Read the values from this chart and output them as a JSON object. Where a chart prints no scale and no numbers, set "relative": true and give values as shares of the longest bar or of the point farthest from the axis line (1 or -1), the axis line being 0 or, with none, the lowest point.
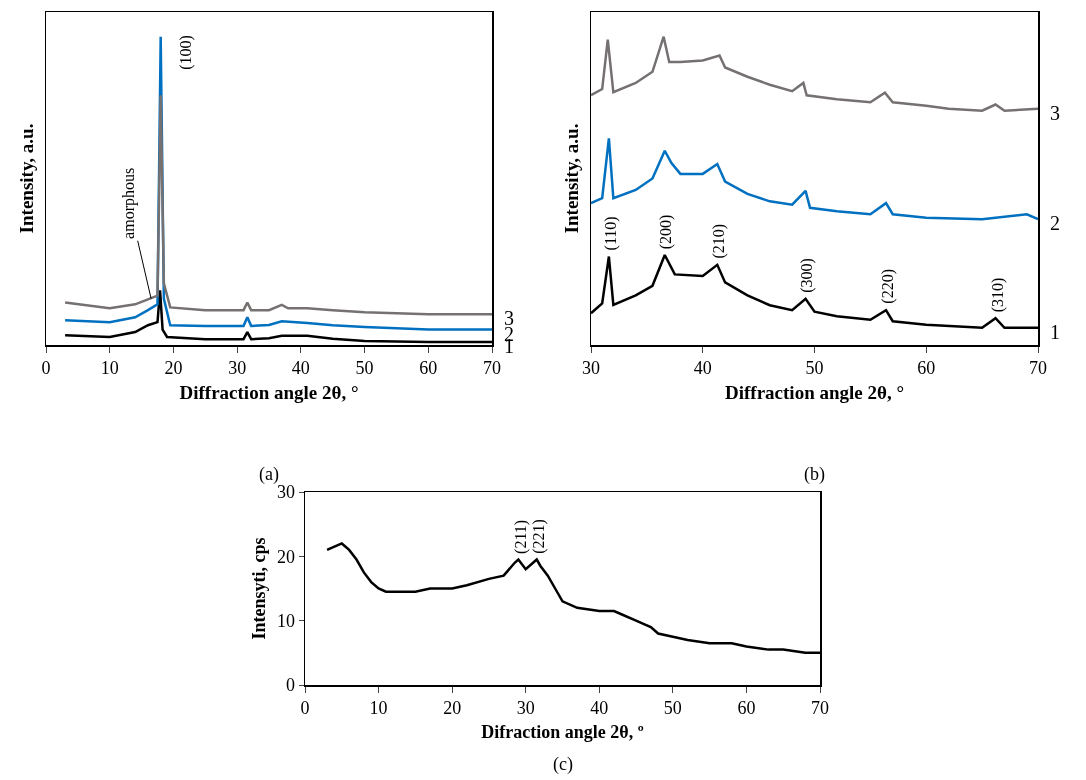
{
  "chart_data": [
    {
      "type": "line",
      "relative": true,
      "xlabel": "Diffraction angle 2θ, °",
      "ylabel": "Intensity, a.u.",
      "xlim": [
        0,
        70
      ],
      "xticks": [
        0,
        10,
        20,
        30,
        40,
        50,
        60,
        70
      ],
      "tick_labels": "x",
      "grid": false,
      "legend": false,
      "marker": "none",
      "line_style": "solid",
      "series": [
        {
          "name": "1",
          "color": "#000000",
          "x": [
            3,
            10,
            14,
            16,
            17.5,
            17.9,
            18.3,
            19,
            25,
            31,
            31.6,
            32.2,
            35,
            37,
            41,
            45,
            50,
            60,
            70
          ],
          "values": [
            0.032,
            0.026,
            0.042,
            0.064,
            0.074,
            0.177,
            0.05,
            0.026,
            0.019,
            0.019,
            0.042,
            0.019,
            0.022,
            0.03,
            0.03,
            0.02,
            0.013,
            0.01,
            0.01
          ]
        },
        {
          "name": "2",
          "color": "#0070c0",
          "x": [
            3,
            10,
            14,
            16,
            17.5,
            18,
            18.5,
            19.5,
            25,
            31,
            31.6,
            32.2,
            35,
            37,
            41,
            45,
            50,
            60,
            70
          ],
          "values": [
            0.08,
            0.074,
            0.09,
            0.113,
            0.132,
            1.0,
            0.15,
            0.064,
            0.062,
            0.062,
            0.09,
            0.062,
            0.065,
            0.077,
            0.071,
            0.064,
            0.058,
            0.05,
            0.05
          ]
        },
        {
          "name": "3",
          "color": "#767171",
          "x": [
            3,
            10,
            14,
            16,
            17.5,
            18,
            18.5,
            19.5,
            25,
            31,
            31.6,
            32.2,
            35,
            37,
            38,
            41,
            45,
            50,
            60,
            70
          ],
          "values": [
            0.138,
            0.119,
            0.132,
            0.148,
            0.16,
            0.81,
            0.2,
            0.122,
            0.113,
            0.113,
            0.138,
            0.113,
            0.113,
            0.13,
            0.119,
            0.119,
            0.113,
            0.106,
            0.1,
            0.1
          ]
        }
      ],
      "annotations": [
        {
          "text": "amorphous",
          "x": 16.5,
          "y": 0.15
        },
        {
          "text": "(100)",
          "x": 18,
          "y": 1
        },
        "(a)"
      ]
    },
    {
      "type": "line",
      "relative": true,
      "xlabel": "Diffraction angle 2θ, °",
      "ylabel": "Intensity, a.u.",
      "xlim": [
        30,
        70
      ],
      "xticks": [
        30,
        40,
        50,
        60,
        70
      ],
      "tick_labels": "x",
      "grid": false,
      "legend": false,
      "marker": "none",
      "line_style": "solid",
      "series": [
        {
          "name": "1",
          "color": "#000000",
          "x": [
            30,
            31,
            31.6,
            32,
            34,
            35.5,
            36.6,
            37.5,
            40,
            41.3,
            42,
            44,
            46,
            48,
            49.2,
            50,
            52,
            55,
            56.4,
            57,
            60,
            65,
            66.2,
            67,
            70
          ],
          "values": [
            0.103,
            0.135,
            0.287,
            0.13,
            0.161,
            0.192,
            0.292,
            0.229,
            0.224,
            0.26,
            0.203,
            0.161,
            0.129,
            0.113,
            0.15,
            0.108,
            0.093,
            0.082,
            0.113,
            0.077,
            0.066,
            0.056,
            0.087,
            0.056,
            0.056
          ]
        },
        {
          "name": "2",
          "color": "#0070c0",
          "x": [
            30,
            31,
            31.6,
            32,
            34,
            35.5,
            36.6,
            37.2,
            38,
            40,
            41.3,
            42,
            44,
            46,
            48,
            49.2,
            49.6,
            52,
            55,
            56.4,
            57,
            60,
            65,
            69,
            70
          ],
          "values": [
            0.46,
            0.476,
            0.67,
            0.476,
            0.503,
            0.54,
            0.63,
            0.59,
            0.555,
            0.555,
            0.587,
            0.53,
            0.49,
            0.466,
            0.455,
            0.5,
            0.445,
            0.434,
            0.424,
            0.46,
            0.424,
            0.413,
            0.408,
            0.424,
            0.408
          ]
        },
        {
          "name": "3",
          "color": "#767171",
          "x": [
            30,
            31,
            31.5,
            32,
            34,
            35.5,
            36.5,
            37,
            38,
            40,
            41.5,
            42,
            44,
            46,
            48,
            49,
            49.3,
            52,
            55,
            56.3,
            57,
            60,
            62,
            65,
            66.2,
            67,
            70
          ],
          "values": [
            0.81,
            0.83,
            0.99,
            0.82,
            0.85,
            0.886,
            1.0,
            0.918,
            0.918,
            0.923,
            0.939,
            0.9,
            0.87,
            0.844,
            0.823,
            0.85,
            0.81,
            0.797,
            0.787,
            0.818,
            0.787,
            0.776,
            0.766,
            0.76,
            0.78,
            0.76,
            0.766
          ]
        }
      ],
      "annotations": [
        {
          "text": "(110)",
          "x": 31.6,
          "y": 0.287
        },
        {
          "text": "(200)",
          "x": 36.6,
          "y": 0.292
        },
        {
          "text": "(210)",
          "x": 41.3,
          "y": 0.26
        },
        {
          "text": "(300)",
          "x": 49.2,
          "y": 0.15
        },
        {
          "text": "(220)",
          "x": 56.4,
          "y": 0.113
        },
        {
          "text": "(310)",
          "x": 66.2,
          "y": 0.087
        },
        "(b)"
      ]
    },
    {
      "type": "line",
      "xlabel": "Difraction angle 2θ, º",
      "ylabel": "Intensyti, cps",
      "xlim": [
        0,
        70
      ],
      "xticks": [
        0,
        10,
        20,
        30,
        40,
        50,
        60,
        70
      ],
      "ylim": [
        0,
        30
      ],
      "yticks": [
        0,
        10,
        20,
        30
      ],
      "grid": false,
      "legend": false,
      "marker": "none",
      "line_style": "solid",
      "series": [
        {
          "color": "#000000",
          "x": [
            3,
            4,
            5,
            6,
            7,
            8,
            9,
            10,
            11,
            13,
            15,
            17,
            20,
            22,
            25,
            27,
            28.5,
            29,
            30,
            31.5,
            32,
            33,
            34,
            35,
            37,
            40,
            42,
            43,
            45,
            46,
            47,
            48,
            50,
            52,
            55,
            58,
            60,
            63,
            65,
            68,
            70
          ],
          "values": [
            21,
            21.5,
            22,
            21,
            19.5,
            17.5,
            16,
            15,
            14.5,
            14.5,
            14.5,
            15,
            15,
            15.5,
            16.5,
            17,
            19,
            19.5,
            18,
            19.5,
            18.5,
            17,
            15,
            13,
            12,
            11.5,
            11.5,
            11,
            10,
            9.5,
            9,
            8,
            7.5,
            7,
            6.5,
            6.5,
            6,
            5.5,
            5.5,
            5,
            5
          ]
        }
      ],
      "annotations": [
        {
          "text": "(211)",
          "x": 29,
          "y": 19.5
        },
        {
          "text": "(221)",
          "x": 31.5,
          "y": 19.5
        },
        "(c)"
      ]
    }
  ]
}
